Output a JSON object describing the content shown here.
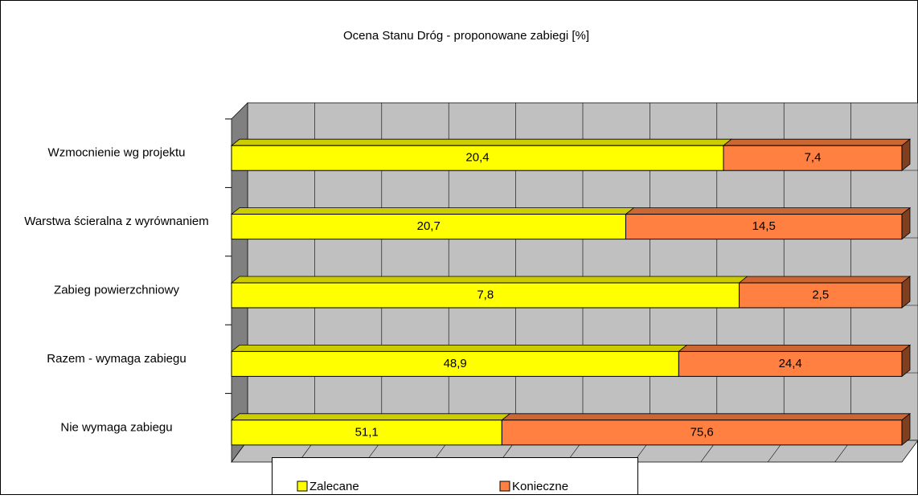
{
  "chart_data": {
    "type": "bar",
    "orientation": "horizontal",
    "stacking": "percent",
    "title": "Ocena Stanu Dróg - proponowane zabiegi [%]",
    "categories": [
      "Wzmocnienie wg projektu",
      "Warstwa ścieralna z wyrównaniem",
      "Zabieg powierzchniowy",
      "Razem - wymaga zabiegu",
      "Nie wymaga zabiegu"
    ],
    "series": [
      {
        "name": "Zalecane",
        "color": "#ffff00",
        "values": [
          20.4,
          20.7,
          7.8,
          48.9,
          51.1
        ],
        "value_labels": [
          "20,4",
          "20,7",
          "7,8",
          "48,9",
          "51,1"
        ]
      },
      {
        "name": "Konieczne",
        "color": "#ff8040",
        "values": [
          7.4,
          14.5,
          2.5,
          24.4,
          75.6
        ],
        "value_labels": [
          "7,4",
          "14,5",
          "2,5",
          "24,4",
          "75,6"
        ]
      }
    ],
    "grid": true,
    "legend": "bottom"
  }
}
